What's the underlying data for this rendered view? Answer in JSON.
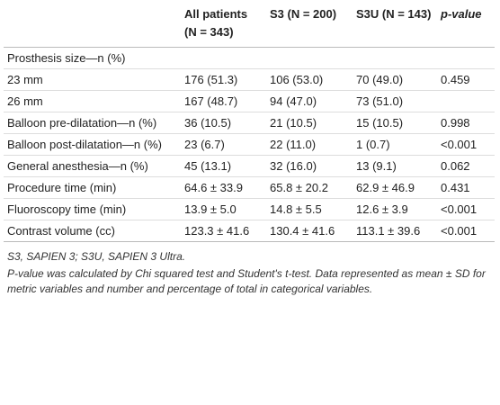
{
  "table": {
    "header": [
      null,
      "All patients (N = 343)",
      "S3 (N = 200)",
      "S3U (N = 143)",
      "p-value"
    ],
    "rows": [
      [
        "Prosthesis size—n (%)",
        null,
        null,
        null,
        null
      ],
      [
        "23 mm",
        "176 (51.3)",
        "106 (53.0)",
        "70 (49.0)",
        "0.459"
      ],
      [
        "26 mm",
        "167 (48.7)",
        "94 (47.0)",
        "73 (51.0)",
        null
      ],
      [
        "Balloon pre-dilatation—n (%)",
        "36 (10.5)",
        "21 (10.5)",
        "15 (10.5)",
        "0.998"
      ],
      [
        "Balloon post-dilatation—n (%)",
        "23 (6.7)",
        "22 (11.0)",
        "1 (0.7)",
        "<0.001"
      ],
      [
        "General anesthesia—n (%)",
        "45 (13.1)",
        "32 (16.0)",
        "13 (9.1)",
        "0.062"
      ],
      [
        "Procedure time (min)",
        "64.6 ± 33.9",
        "65.8 ± 20.2",
        "62.9 ± 46.9",
        "0.431"
      ],
      [
        "Fluoroscopy time (min)",
        "13.9 ± 5.0",
        "14.8 ± 5.5",
        "12.6 ± 3.9",
        "<0.001"
      ],
      [
        "Contrast volume (cc)",
        "123.3 ± 41.6",
        "130.4 ± 41.6",
        "113.1 ± 39.6",
        "<0.001"
      ]
    ]
  },
  "notes": [
    "S3, SAPIEN 3; S3U, SAPIEN 3 Ultra.",
    "P-value was calculated by Chi squared test and Student's t-test. Data represented as mean ± SD for metric variables and number and percentage of total in categorical variables."
  ]
}
